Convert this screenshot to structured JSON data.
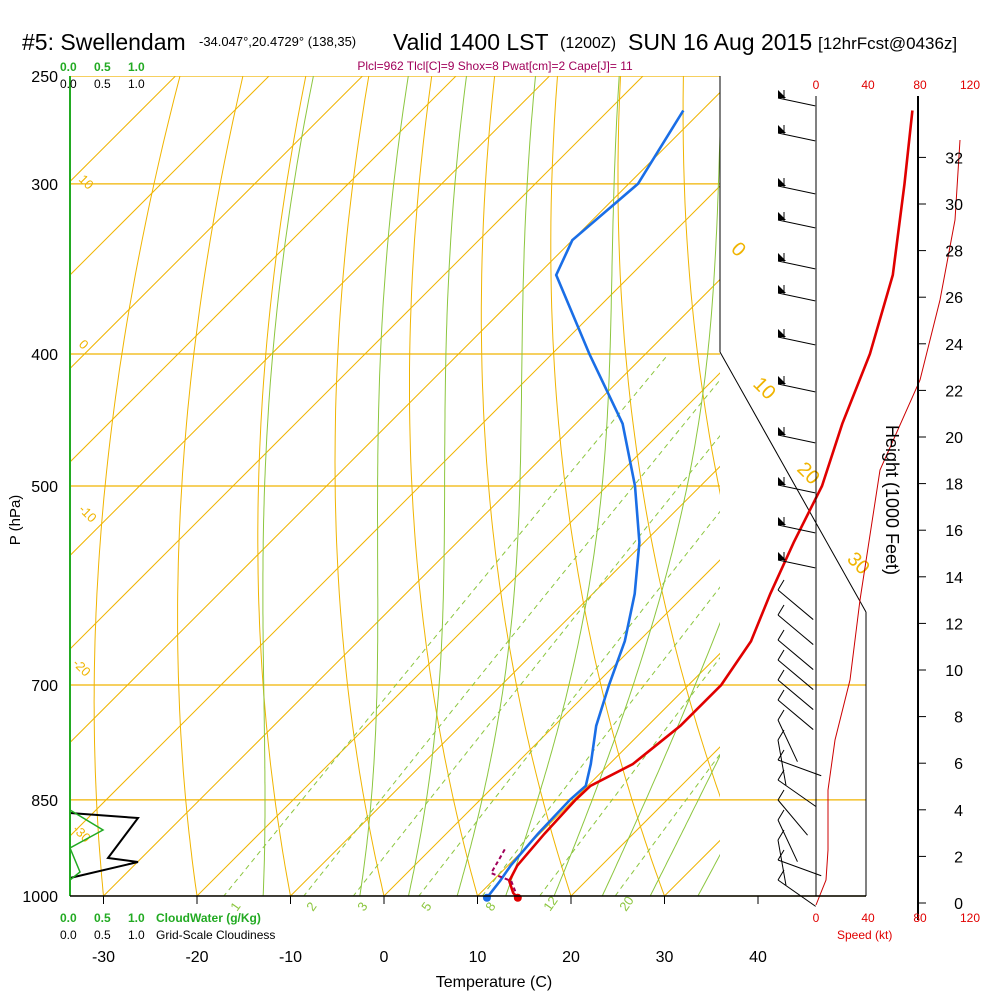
{
  "header": {
    "station": "#5: Swellendam",
    "coords": "-34.047°,20.4729° (138,35)",
    "valid": "Valid 1400 LST",
    "zulu": "(1200Z)",
    "date": "SUN 16 Aug 2015",
    "forecast": "[12hrFcst@0436z]",
    "indices": "Plcl=962 Tlcl[C]=9 Shox=8 Pwat[cm]=2 Cape[J]= 11"
  },
  "chart_data": {
    "type": "skew-t",
    "xlabel": "Temperature (C)",
    "ylabel": "P (hPa)",
    "right_label": "Height (1000 Feet)",
    "x_ticks": [
      -30,
      -20,
      -10,
      0,
      10,
      20,
      30,
      40
    ],
    "p_ticks": [
      250,
      300,
      400,
      500,
      700,
      850,
      1000
    ],
    "height_ticks": [
      0,
      2,
      4,
      6,
      8,
      10,
      12,
      14,
      16,
      18,
      20,
      22,
      24,
      26,
      28,
      30,
      32
    ],
    "temperature_series": {
      "color": "#e00000",
      "points": [
        {
          "p": 1003,
          "t": 14.5
        },
        {
          "p": 995,
          "t": 13.5
        },
        {
          "p": 975,
          "t": 11.8
        },
        {
          "p": 950,
          "t": 11.0
        },
        {
          "p": 900,
          "t": 10.5
        },
        {
          "p": 850,
          "t": 10.2
        },
        {
          "p": 830,
          "t": 10.3
        },
        {
          "p": 800,
          "t": 12.5
        },
        {
          "p": 775,
          "t": 13.0
        },
        {
          "p": 750,
          "t": 13.5
        },
        {
          "p": 700,
          "t": 13.5
        },
        {
          "p": 650,
          "t": 12.0
        },
        {
          "p": 600,
          "t": 9.0
        },
        {
          "p": 550,
          "t": 6.0
        },
        {
          "p": 500,
          "t": 3.0
        },
        {
          "p": 450,
          "t": -1.5
        },
        {
          "p": 400,
          "t": -6.0
        },
        {
          "p": 350,
          "t": -12.0
        },
        {
          "p": 300,
          "t": -20.5
        },
        {
          "p": 265,
          "t": -27.5
        }
      ]
    },
    "dewpoint_series": {
      "color": "#1a6ee6",
      "points": [
        {
          "p": 1003,
          "t": 11.2
        },
        {
          "p": 975,
          "t": 10.8
        },
        {
          "p": 950,
          "t": 10.3
        },
        {
          "p": 900,
          "t": 9.8
        },
        {
          "p": 850,
          "t": 9.6
        },
        {
          "p": 830,
          "t": 9.8
        },
        {
          "p": 800,
          "t": 8.0
        },
        {
          "p": 750,
          "t": 4.5
        },
        {
          "p": 700,
          "t": 1.5
        },
        {
          "p": 650,
          "t": -1.5
        },
        {
          "p": 600,
          "t": -5.5
        },
        {
          "p": 550,
          "t": -10.5
        },
        {
          "p": 500,
          "t": -17.0
        },
        {
          "p": 450,
          "t": -25.0
        },
        {
          "p": 400,
          "t": -36.0
        },
        {
          "p": 350,
          "t": -48.0
        },
        {
          "p": 330,
          "t": -50.0
        },
        {
          "p": 300,
          "t": -49.0
        },
        {
          "p": 265,
          "t": -52.0
        }
      ]
    },
    "parcel_series": {
      "color": "#a0005a",
      "points": [
        {
          "p": 1003,
          "t": 14.5
        },
        {
          "p": 975,
          "t": 12.0
        },
        {
          "p": 962,
          "t": 9.0
        },
        {
          "p": 940,
          "t": 8.4
        },
        {
          "p": 920,
          "t": 7.8
        }
      ]
    },
    "isotherm_labels": [
      "10",
      "0",
      "-10",
      "-20",
      "-30",
      "0",
      "10",
      "20",
      "30"
    ],
    "mixing_ratio_labels": [
      "1",
      "2",
      "3",
      "5",
      "8",
      "12",
      "20"
    ],
    "cloud_axis": {
      "top_green_ticks": [
        "0.0",
        "0.5",
        "1.0"
      ],
      "top_black_ticks": [
        "0.0",
        "0.5",
        "1.0"
      ],
      "bottom_green_ticks": [
        "0.0",
        "0.5",
        "1.0"
      ],
      "bottom_black_ticks": [
        "0.0",
        "0.5",
        "1.0"
      ],
      "cloudwater_label": "CloudWater (g/Kg)",
      "cloudiness_label": "Grid-Scale Cloudiness"
    },
    "wind_speed_axis": {
      "ticks": [
        "0",
        "40",
        "80",
        "120"
      ],
      "label": "Speed (kt)"
    }
  }
}
